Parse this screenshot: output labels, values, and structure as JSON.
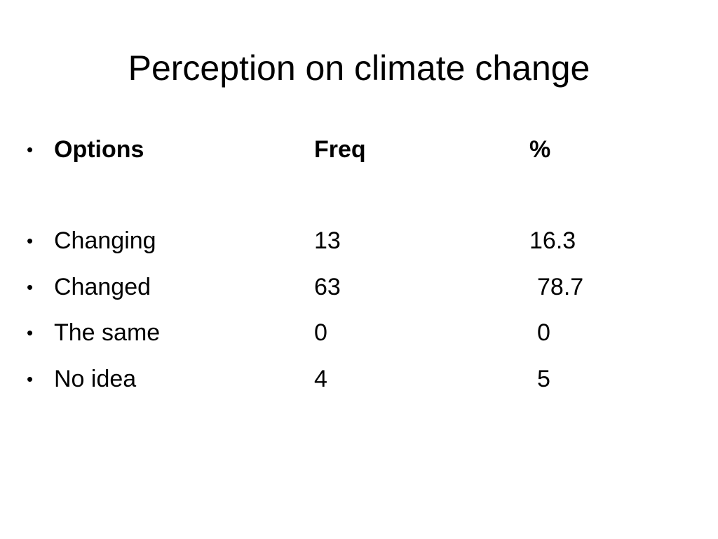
{
  "slide": {
    "title": "Perception on climate change",
    "header": {
      "bullet": "•",
      "option": "Options",
      "freq": "Freq",
      "percent": "%"
    },
    "rows": [
      {
        "bullet": "•",
        "option": "Changing",
        "freq": "13",
        "percent": "16.3"
      },
      {
        "bullet": "•",
        "option": "Changed",
        "freq": "63",
        "percent": "78.7"
      },
      {
        "bullet": "•",
        "option": "The same",
        "freq": "0",
        "percent": "0"
      },
      {
        "bullet": "•",
        "option": "No idea",
        "freq": "4",
        "percent": "5"
      }
    ]
  }
}
